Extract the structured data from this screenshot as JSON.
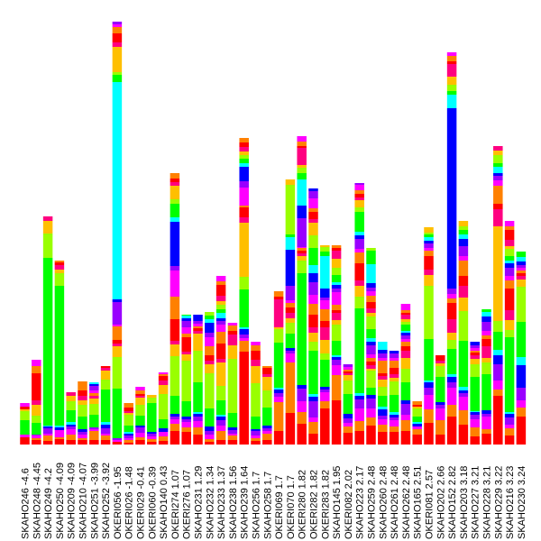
{
  "chart_data": {
    "type": "bar",
    "stacked": true,
    "title": "",
    "xlabel": "",
    "ylabel": "",
    "ylim": [
      0,
      495
    ],
    "legend": "none",
    "grid": false,
    "segment_palette": [
      "#ff0000",
      "#ff8000",
      "#ff00ff",
      "#9900ff",
      "#0000ff",
      "#00ffff",
      "#00ff00",
      "#99ff00",
      "#ffbf00",
      "#ff0080"
    ],
    "categories": [
      "SKAHO246 -4.6",
      "SKAHO248 -4.45",
      "SKAHO249 -4.2",
      "SKAHO250 -4.09",
      "SKAHO209 -4.09",
      "SKAHO210 -4.07",
      "SKAHO251 -3.99",
      "SKAHO252 -3.92",
      "OKERI056 -1.95",
      "OKERI026 -1.48",
      "OKERI029 -0.41",
      "OKERI060 -0.39",
      "SKAHO140 0.43",
      "OKERI274 1.07",
      "OKERI276 1.07",
      "SKAHO231 1.29",
      "SKAHO232 1.34",
      "SKAHO233 1.37",
      "SKAHO238 1.56",
      "SKAHO239 1.64",
      "SKAHO256 1.7",
      "SKAHO258 1.7",
      "OKERI069 1.7",
      "OKERI070 1.7",
      "OKERI280 1.82",
      "OKERI282 1.82",
      "OKERI283 1.82",
      "SKAHO145 1.95",
      "OKERI082 2.02",
      "SKAHO223 2.17",
      "SKAHO259 2.48",
      "SKAHO260 2.48",
      "SKAHO261 2.48",
      "SKAHO262 2.48",
      "SKAHO165 2.51",
      "OKERI081 2.57",
      "SKAHO202 2.66",
      "SKAHO152 2.82",
      "SKAHO203 3.18",
      "SKAHO227 3.21",
      "SKAHO228 3.21",
      "SKAHO229 3.22",
      "SKAHO216 3.23",
      "SKAHO230 3.24"
    ],
    "values": [
      [
        8,
        0,
        3,
        0,
        0,
        0,
        16,
        10,
        2,
        0,
        3,
        0,
        4
      ],
      [
        5,
        2,
        3,
        1,
        0,
        0,
        13,
        8,
        12,
        5,
        30,
        8,
        7
      ],
      [
        4,
        6,
        2,
        6,
        2,
        1,
        186,
        27,
        14,
        5
      ],
      [
        6,
        2,
        8,
        0,
        3,
        2,
        155,
        14,
        4,
        5,
        3,
        2
      ],
      [
        5,
        6,
        6,
        3,
        2,
        3,
        13,
        10,
        6,
        4
      ],
      [
        5,
        2,
        4,
        3,
        3,
        0,
        14,
        13,
        5,
        5,
        6,
        10
      ],
      [
        5,
        10,
        2,
        2,
        0,
        0,
        14,
        12,
        6,
        3,
        0,
        3,
        3,
        5,
        2,
        2
      ],
      [
        5,
        5,
        2,
        6,
        4,
        3,
        36,
        11,
        10,
        3,
        2
      ],
      [
        3,
        0,
        2,
        2,
        0,
        0,
        55,
        35,
        12,
        3,
        4,
        15,
        2,
        25,
        3,
        241,
        8,
        3,
        28,
        5,
        10,
        7,
        3,
        3
      ],
      [
        2,
        3,
        2,
        3,
        2,
        2,
        7,
        12,
        2,
        2,
        4,
        5
      ],
      [
        5,
        3,
        5,
        6,
        2,
        0,
        11,
        12,
        8,
        2,
        2,
        4,
        4
      ],
      [
        3,
        3,
        3,
        3,
        2,
        0,
        32,
        6,
        3
      ],
      [
        4,
        5,
        5,
        0,
        4,
        0,
        10,
        28,
        10,
        5,
        5,
        2,
        2
      ],
      [
        15,
        8,
        5,
        3,
        3,
        0,
        20,
        44,
        13,
        4,
        24,
        25,
        29,
        5,
        49,
        5,
        15,
        5,
        15,
        4,
        4,
        6
      ],
      [
        14,
        5,
        6,
        3,
        3,
        0,
        17,
        45,
        7,
        3,
        16,
        4,
        7,
        7,
        3,
        3,
        1
      ],
      [
        11,
        8,
        7,
        5,
        3,
        2,
        33,
        35,
        19,
        3,
        3,
        2,
        3,
        3,
        7
      ],
      [
        3,
        3,
        5,
        4,
        5,
        0,
        20,
        39,
        10,
        4,
        6,
        10,
        10,
        5,
        11,
        4,
        4,
        4
      ],
      [
        5,
        10,
        6,
        6,
        4,
        2,
        16,
        16,
        26,
        4,
        17,
        13,
        8,
        4,
        3,
        6,
        4,
        5,
        4,
        6,
        12,
        4,
        6
      ],
      [
        5,
        5,
        2,
        4,
        3,
        0,
        16,
        60,
        15,
        12,
        4,
        6,
        3
      ],
      [
        103,
        12,
        3,
        4,
        6,
        2,
        42,
        14,
        60,
        6,
        11,
        2,
        20,
        7,
        16,
        4,
        5,
        4,
        4,
        5,
        5,
        5
      ],
      [
        4,
        3,
        3,
        5,
        2,
        0,
        14,
        37,
        19,
        7,
        10,
        6,
        4
      ],
      [
        5,
        7,
        3,
        3,
        3,
        0,
        20,
        19,
        15,
        3,
        7,
        2
      ],
      [
        15,
        32,
        6,
        4,
        4,
        2,
        50,
        15,
        2,
        31,
        3,
        6
      ],
      [
        35,
        56,
        10,
        3,
        3,
        0,
        16,
        12,
        5,
        6,
        6,
        5,
        3,
        16,
        40,
        14,
        3,
        55,
        6
      ],
      [
        23,
        13,
        12,
        14,
        4,
        0,
        124,
        14,
        5,
        3,
        3,
        3,
        1,
        32,
        14,
        29,
        7,
        6,
        3,
        19,
        2,
        5,
        6
      ],
      [
        12,
        13,
        5,
        18,
        5,
        3,
        48,
        10,
        10,
        6,
        14,
        12,
        10,
        14,
        10,
        9,
        19,
        14,
        14,
        4,
        8,
        4,
        11,
        8,
        3
      ],
      [
        40,
        8,
        10,
        3,
        3,
        0,
        30,
        7,
        15,
        14,
        7,
        13,
        10,
        3,
        10,
        36,
        5,
        5,
        2
      ],
      [
        49,
        28,
        11,
        6,
        3,
        2,
        16,
        18,
        5,
        8,
        3,
        6,
        14,
        4,
        4,
        3,
        8,
        8,
        10,
        9,
        3,
        3
      ],
      [
        13,
        7,
        4,
        5,
        5,
        0,
        22,
        15,
        6,
        2,
        2,
        2,
        3,
        3
      ],
      [
        15,
        11,
        14,
        10,
        4,
        3,
        94,
        13,
        12,
        6,
        19,
        12,
        4,
        11,
        4,
        4,
        22,
        5,
        8,
        3,
        4,
        4,
        6,
        2
      ],
      [
        21,
        9,
        10,
        11,
        4,
        0,
        8,
        19,
        2,
        4,
        4,
        4,
        4,
        10,
        4,
        4,
        10,
        14,
        4,
        5,
        7,
        7,
        5,
        4,
        5,
        21,
        15,
        3
      ],
      [
        14,
        8,
        6,
        4,
        7,
        3,
        12,
        10,
        8,
        4,
        3,
        14,
        3,
        5,
        4,
        9
      ],
      [
        14,
        6,
        7,
        3,
        3,
        3,
        19,
        15,
        4,
        4,
        7,
        8,
        3,
        5,
        3
      ],
      [
        15,
        12,
        6,
        12,
        4,
        0,
        20,
        15,
        12,
        8,
        5,
        5,
        3,
        4,
        3,
        2,
        7,
        3,
        3,
        5,
        2,
        3,
        7
      ],
      [
        11,
        6,
        3,
        0,
        3,
        2,
        6,
        9,
        2,
        0,
        2,
        4
      ],
      [
        24,
        15,
        16,
        8,
        6,
        2,
        46,
        59,
        12,
        6,
        15,
        6,
        3,
        5,
        3,
        4,
        3,
        2,
        6
      ],
      [
        11,
        16,
        13,
        4,
        3,
        0,
        28,
        12,
        3,
        3,
        6
      ],
      [
        31,
        13,
        19,
        6,
        6,
        3,
        28,
        10,
        8,
        15,
        18,
        5,
        5,
        6,
        200,
        15,
        4,
        7,
        9,
        14,
        3,
        6,
        4
      ],
      [
        22,
        16,
        15,
        4,
        3,
        4,
        51,
        33,
        15,
        13,
        11,
        17,
        5,
        11,
        8,
        5,
        5,
        4,
        6
      ],
      [
        9,
        10,
        9,
        5,
        3,
        1,
        38,
        14,
        6,
        4,
        3,
        2,
        3,
        3,
        4
      ],
      [
        12,
        5,
        14,
        3,
        4,
        0,
        40,
        13,
        5,
        13,
        8,
        4,
        5,
        10,
        6,
        5,
        3
      ],
      [
        54,
        7,
        10,
        18,
        10,
        6,
        20,
        12,
        105,
        19,
        6,
        20,
        6,
        5,
        3,
        7,
        4,
        9,
        5,
        5
      ],
      [
        10,
        8,
        4,
        8,
        4,
        2,
        83,
        8,
        11,
        11,
        24,
        9,
        5,
        9,
        5,
        3,
        5,
        8,
        3,
        7,
        11,
        4,
        6
      ],
      [
        31,
        10,
        8,
        14,
        25,
        9,
        39,
        39,
        8,
        4,
        3,
        3,
        3,
        3,
        4,
        5,
        6
      ]
    ]
  }
}
